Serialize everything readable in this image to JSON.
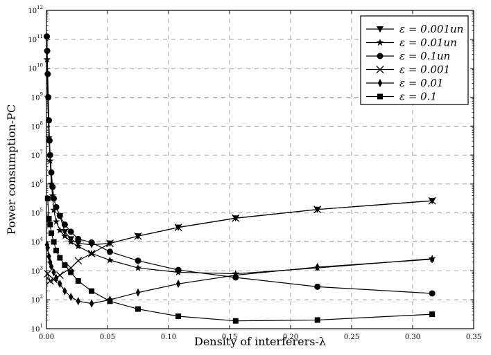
{
  "chart_data": {
    "type": "line",
    "xlabel": "Density of interferers-λ",
    "ylabel": "Power consumption-PC",
    "xlim": [
      0,
      0.35
    ],
    "ylim_log10": [
      1,
      12
    ],
    "yscale": "log",
    "grid": true,
    "legend_position": "top-right",
    "x_ticks": [
      "0.00",
      "0.05",
      "0.10",
      "0.15",
      "0.20",
      "0.25",
      "0.30",
      "0.35"
    ],
    "y_ticks_exp": [
      "1",
      "2",
      "3",
      "4",
      "5",
      "6",
      "7",
      "8",
      "9",
      "10",
      "11",
      "12"
    ],
    "series": [
      {
        "name": "ε = 0.001un",
        "legend_label": "ε = 0.001un",
        "marker": "triangle-down",
        "x": [
          0.011,
          0.015,
          0.02,
          0.026,
          0.037,
          0.052,
          0.075,
          0.108,
          0.155,
          0.222,
          0.316
        ],
        "y_log10": [
          4.9,
          4.35,
          4.1,
          3.95,
          3.9,
          3.95,
          4.2,
          4.5,
          4.82,
          5.12,
          5.42
        ]
      },
      {
        "name": "ε = 0.01un",
        "legend_label": "ε = 0.01un",
        "marker": "star",
        "x": [
          0.0005,
          0.001,
          0.002,
          0.003,
          0.004,
          0.005,
          0.006,
          0.008,
          0.011,
          0.015,
          0.02,
          0.026,
          0.037,
          0.052,
          0.075,
          0.108,
          0.155,
          0.222,
          0.316
        ],
        "y_log10": [
          10.3,
          9.0,
          7.6,
          6.8,
          6.0,
          5.6,
          5.1,
          4.7,
          4.4,
          4.2,
          4.0,
          3.85,
          3.6,
          3.37,
          3.1,
          2.95,
          2.9,
          3.1,
          3.42
        ]
      },
      {
        "name": "ε = 0.1un",
        "legend_label": "ε = 0.1un",
        "marker": "circle",
        "x": [
          0.0003,
          0.0006,
          0.001,
          0.0015,
          0.002,
          0.0025,
          0.003,
          0.004,
          0.005,
          0.006,
          0.008,
          0.011,
          0.015,
          0.02,
          0.026,
          0.037,
          0.052,
          0.075,
          0.108,
          0.155,
          0.222,
          0.316
        ],
        "y_log10": [
          11.1,
          10.6,
          9.8,
          9.0,
          8.2,
          7.5,
          7.0,
          6.4,
          5.9,
          5.5,
          5.2,
          4.9,
          4.6,
          4.35,
          4.1,
          3.98,
          3.66,
          3.35,
          3.03,
          2.77,
          2.45,
          2.22
        ]
      },
      {
        "name": "ε = 0.001",
        "legend_label": "ε = 0.001",
        "marker": "x",
        "x": [
          0.001,
          0.003,
          0.006,
          0.011,
          0.02,
          0.026,
          0.037,
          0.052,
          0.075,
          0.108,
          0.155,
          0.222,
          0.316
        ],
        "y_log10": [
          2.9,
          2.65,
          2.7,
          2.85,
          3.1,
          3.35,
          3.6,
          3.95,
          4.2,
          4.5,
          4.82,
          5.12,
          5.42
        ]
      },
      {
        "name": "ε = 0.01",
        "legend_label": "ε = 0.01",
        "marker": "diamond",
        "x": [
          0.0005,
          0.001,
          0.002,
          0.003,
          0.004,
          0.006,
          0.008,
          0.011,
          0.015,
          0.02,
          0.026,
          0.037,
          0.052,
          0.075,
          0.108,
          0.155,
          0.222,
          0.316
        ],
        "y_log10": [
          3.9,
          3.8,
          3.5,
          3.3,
          3.15,
          2.95,
          2.75,
          2.55,
          2.3,
          2.1,
          1.95,
          1.87,
          2.0,
          2.25,
          2.55,
          2.85,
          3.13,
          3.4
        ]
      },
      {
        "name": "ε = 0.1",
        "legend_label": "ε = 0.1",
        "marker": "square",
        "x": [
          0.001,
          0.002,
          0.003,
          0.004,
          0.006,
          0.008,
          0.011,
          0.015,
          0.02,
          0.026,
          0.037,
          0.052,
          0.075,
          0.108,
          0.155,
          0.222,
          0.316
        ],
        "y_log10": [
          5.5,
          4.8,
          4.6,
          4.3,
          4.0,
          3.7,
          3.45,
          3.2,
          2.95,
          2.65,
          2.3,
          1.95,
          1.68,
          1.43,
          1.27,
          1.3,
          1.5
        ]
      }
    ]
  }
}
